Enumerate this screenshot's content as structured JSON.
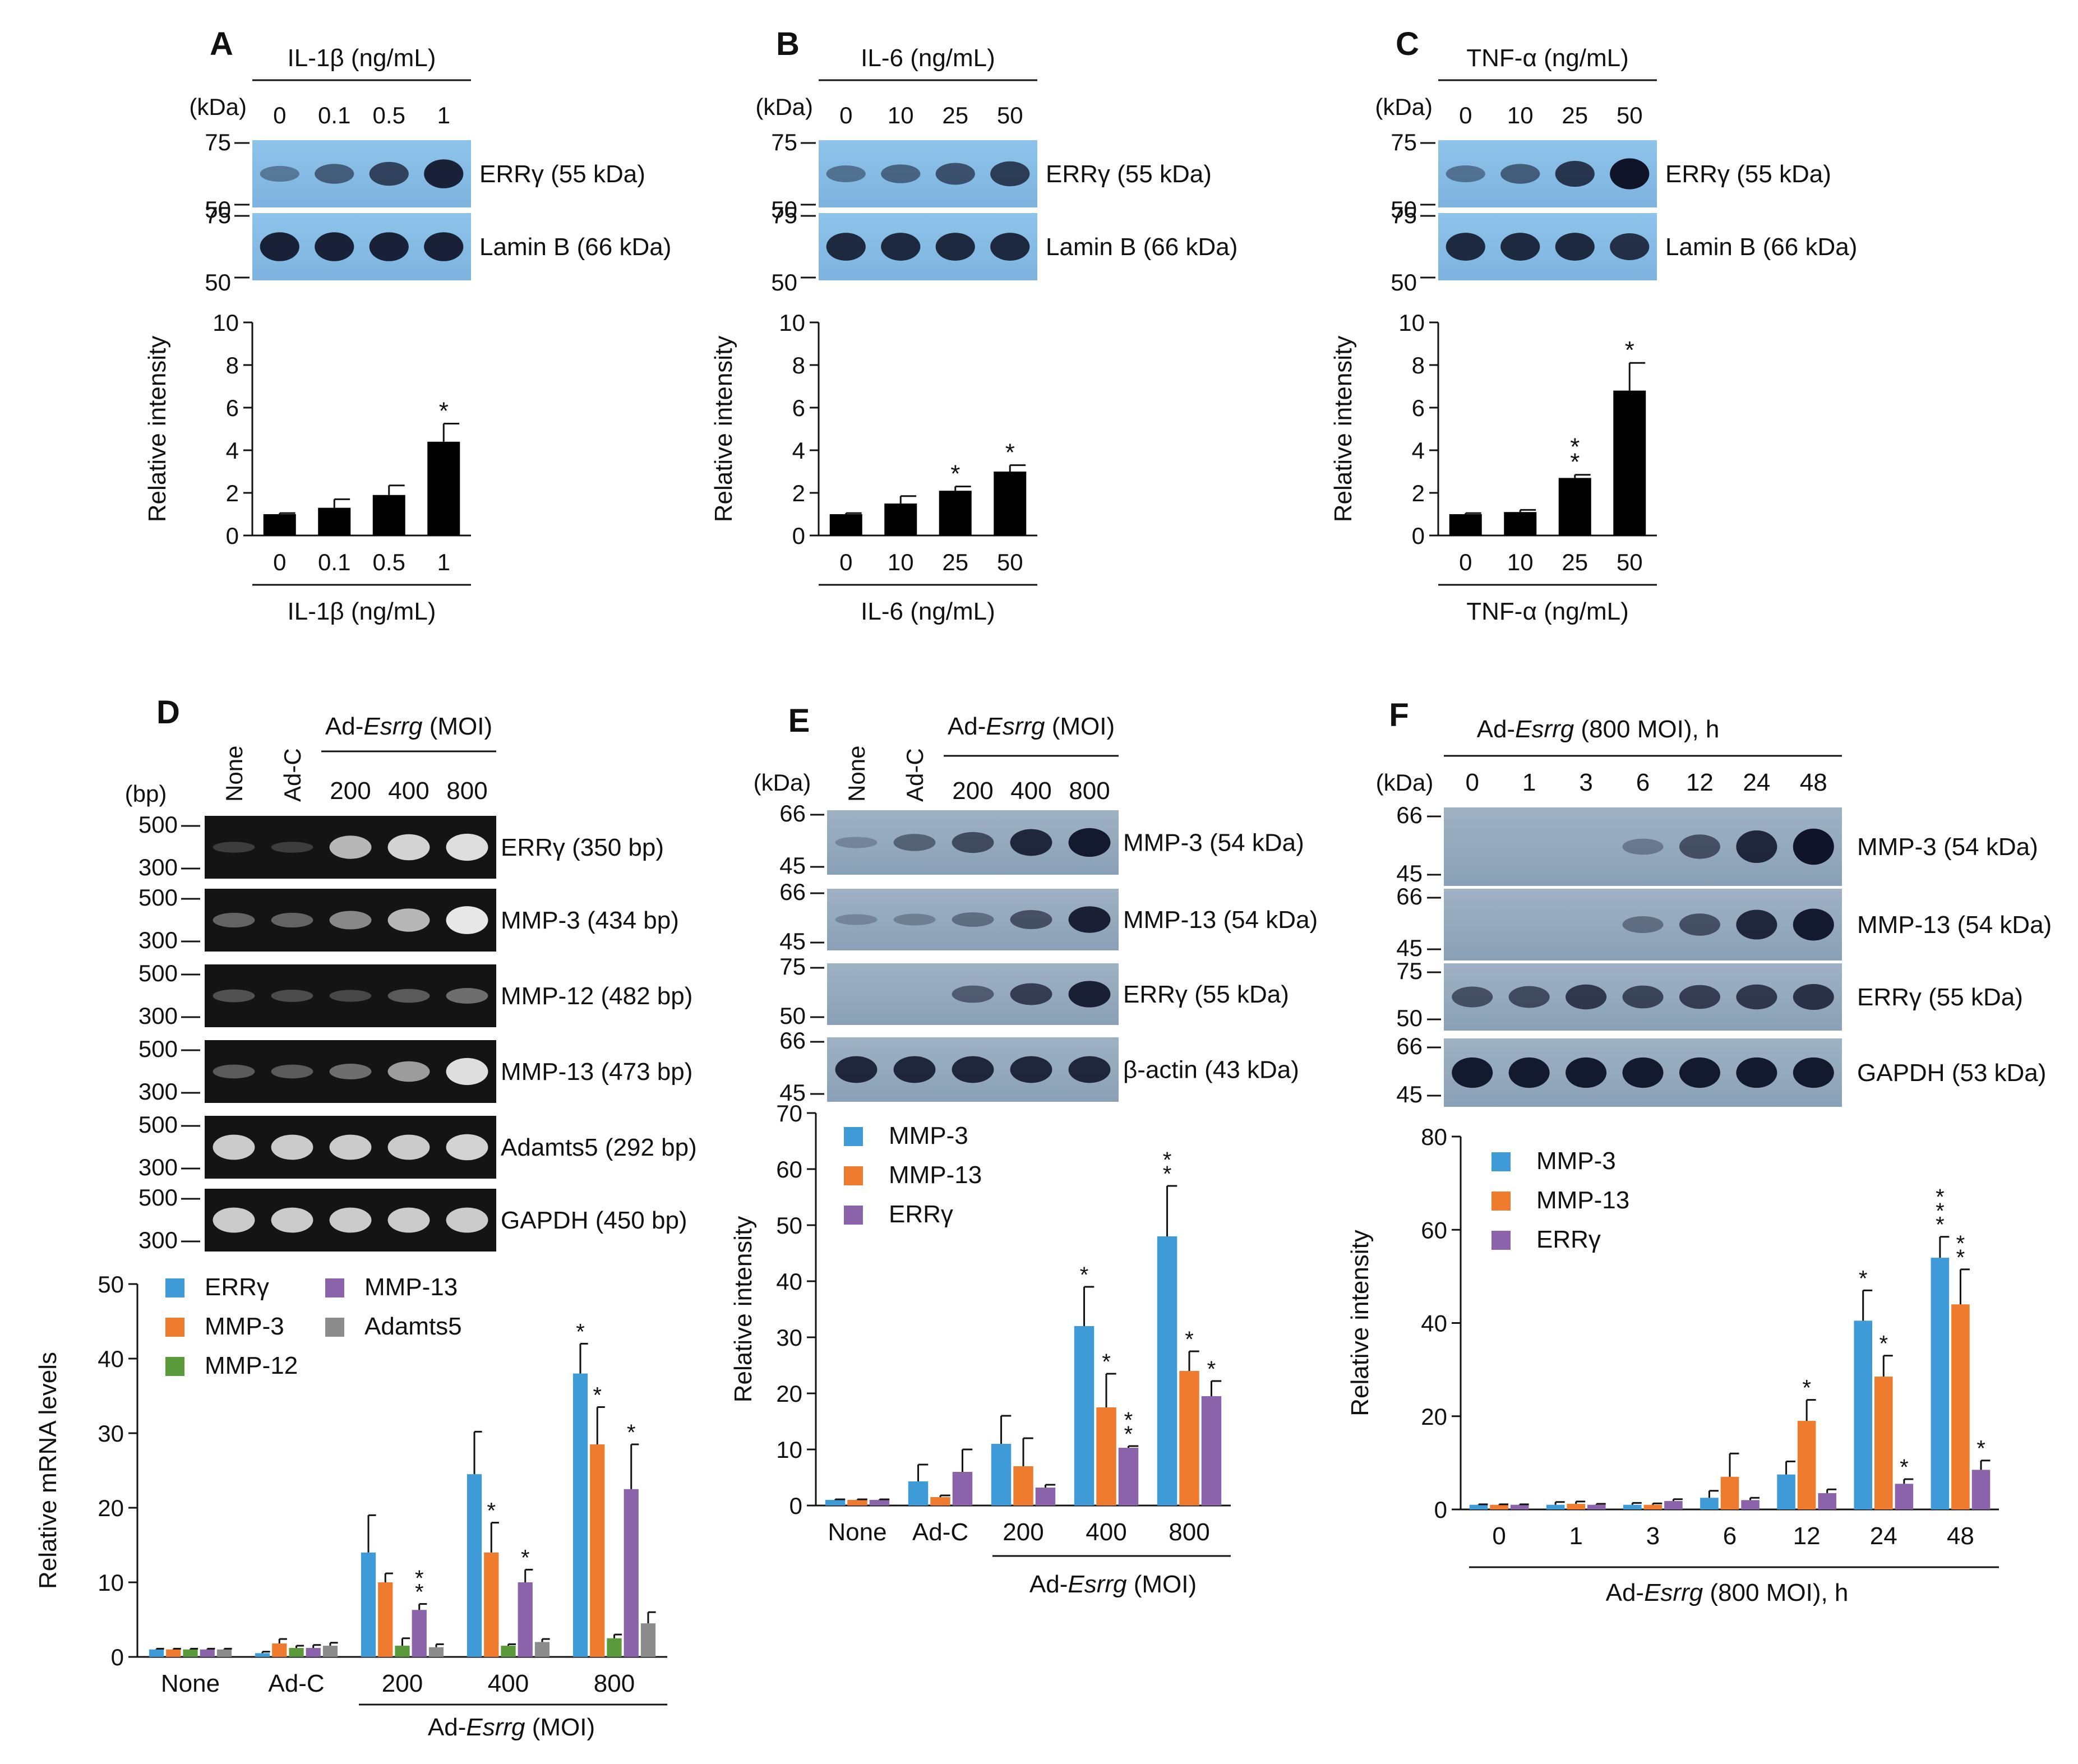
{
  "panels": {
    "A": {
      "letter": "A",
      "treatment_label": "IL-1β (ng/mL)",
      "lanes": [
        "0",
        "0.1",
        "0.5",
        "1"
      ],
      "blot_unit": "(kDa)",
      "markers": [
        [
          "75",
          "50"
        ],
        [
          "75",
          "50"
        ]
      ],
      "bands": [
        "ERRγ (55 kDa)",
        "Lamin B (66 kDa)"
      ],
      "band_intensity": [
        [
          0.25,
          0.45,
          0.65,
          0.9
        ],
        [
          0.9,
          0.9,
          0.9,
          0.9
        ]
      ]
    },
    "B": {
      "letter": "B",
      "treatment_label": "IL-6 (ng/mL)",
      "lanes": [
        "0",
        "10",
        "25",
        "50"
      ],
      "blot_unit": "(kDa)",
      "markers": [
        [
          "75",
          "50"
        ],
        [
          "75",
          "50"
        ]
      ],
      "bands": [
        "ERRγ (55 kDa)",
        "Lamin B (66 kDa)"
      ],
      "band_intensity": [
        [
          0.3,
          0.4,
          0.55,
          0.7
        ],
        [
          0.85,
          0.85,
          0.85,
          0.85
        ]
      ]
    },
    "C": {
      "letter": "C",
      "treatment_label": "TNF-α (ng/mL)",
      "lanes": [
        "0",
        "10",
        "25",
        "50"
      ],
      "blot_unit": "(kDa)",
      "markers": [
        [
          "75",
          "50"
        ],
        [
          "75",
          "50"
        ]
      ],
      "bands": [
        "ERRγ (55 kDa)",
        "Lamin B (66 kDa)"
      ],
      "band_intensity": [
        [
          0.3,
          0.45,
          0.75,
          1.0
        ],
        [
          0.85,
          0.85,
          0.85,
          0.8
        ]
      ]
    },
    "D": {
      "letter": "D",
      "treatment_label": "Ad-Esrrg (MOI)",
      "treatment_prefix": "Ad-",
      "treatment_italic": "Esrrg",
      "treatment_suffix": " (MOI)",
      "lanes": [
        "None",
        "Ad-C",
        "200",
        "400",
        "800"
      ],
      "gel_unit": "(bp)",
      "markers": [
        [
          "500",
          "300"
        ],
        [
          "500",
          "300"
        ],
        [
          "500",
          "300"
        ],
        [
          "500",
          "300"
        ],
        [
          "500",
          "300"
        ],
        [
          "500",
          "300"
        ]
      ],
      "bands": [
        "ERRγ (350 bp)",
        "MMP-3  (434 bp)",
        "MMP-12  (482 bp)",
        "MMP-13  (473 bp)",
        "Adamts5 (292 bp)",
        "GAPDH (450 bp)"
      ],
      "band_intensity": [
        [
          0.05,
          0.05,
          0.7,
          0.85,
          0.9
        ],
        [
          0.25,
          0.25,
          0.45,
          0.7,
          0.95
        ],
        [
          0.15,
          0.12,
          0.1,
          0.2,
          0.3
        ],
        [
          0.2,
          0.2,
          0.3,
          0.55,
          0.9
        ],
        [
          0.8,
          0.8,
          0.8,
          0.8,
          0.85
        ],
        [
          0.8,
          0.8,
          0.8,
          0.8,
          0.8
        ]
      ]
    },
    "E": {
      "letter": "E",
      "treatment_label": "Ad-Esrrg (MOI)",
      "treatment_prefix": "Ad-",
      "treatment_italic": "Esrrg",
      "treatment_suffix": " (MOI)",
      "lanes": [
        "None",
        "Ad-C",
        "200",
        "400",
        "800"
      ],
      "blot_unit": "(kDa)",
      "markers": [
        [
          "66",
          "45"
        ],
        [
          "66",
          "45"
        ],
        [
          "75",
          "50"
        ],
        [
          "66",
          "45"
        ]
      ],
      "bands": [
        "MMP-3  (54 kDa)",
        "MMP-13  (54 kDa)",
        "ERRγ (55 kDa)",
        "β-actin (43 kDa)"
      ],
      "band_intensity": [
        [
          0.05,
          0.35,
          0.55,
          0.85,
          0.95
        ],
        [
          0.05,
          0.1,
          0.25,
          0.5,
          0.9
        ],
        [
          0.0,
          0.0,
          0.4,
          0.65,
          0.9
        ],
        [
          0.85,
          0.85,
          0.85,
          0.85,
          0.85
        ]
      ]
    },
    "F": {
      "letter": "F",
      "treatment_label": "Ad-Esrrg (800 MOI), h",
      "treatment_prefix": "Ad-",
      "treatment_italic": "Esrrg",
      "treatment_suffix": " (800 MOI), h",
      "lanes": [
        "0",
        "1",
        "3",
        "6",
        "12",
        "24",
        "48"
      ],
      "blot_unit": "(kDa)",
      "markers": [
        [
          "66",
          "45"
        ],
        [
          "66",
          "45"
        ],
        [
          "75",
          "50"
        ],
        [
          "66",
          "45"
        ]
      ],
      "bands": [
        "MMP-3  (54 kDa)",
        "MMP-13  (54 kDa)",
        "ERRγ (55 kDa)",
        "GAPDH (53 kDa)"
      ],
      "band_intensity": [
        [
          0.0,
          0.0,
          0.0,
          0.15,
          0.5,
          0.85,
          1.0
        ],
        [
          0.0,
          0.0,
          0.0,
          0.25,
          0.5,
          0.85,
          0.95
        ],
        [
          0.5,
          0.55,
          0.7,
          0.6,
          0.65,
          0.7,
          0.75
        ],
        [
          0.95,
          0.95,
          0.95,
          0.95,
          0.95,
          0.95,
          0.95
        ]
      ]
    }
  },
  "chart_data": [
    {
      "id": "A",
      "type": "bar",
      "categories": [
        "0",
        "0.1",
        "0.5",
        "1"
      ],
      "series": [
        {
          "name": "ERRγ",
          "values": [
            1.0,
            1.3,
            1.9,
            4.4
          ],
          "errors": [
            0.05,
            0.4,
            0.45,
            0.85
          ],
          "sig": [
            "",
            "",
            "",
            "*"
          ],
          "color": "#000000"
        }
      ],
      "ylabel": "Relative intensity",
      "xlabel": "IL-1β (ng/mL)",
      "ylim": [
        0,
        10
      ],
      "yticks": [
        "0",
        "2",
        "4",
        "6",
        "8",
        "10"
      ],
      "legend": []
    },
    {
      "id": "B",
      "type": "bar",
      "categories": [
        "0",
        "10",
        "25",
        "50"
      ],
      "series": [
        {
          "name": "ERRγ",
          "values": [
            1.0,
            1.5,
            2.1,
            3.0
          ],
          "errors": [
            0.05,
            0.35,
            0.2,
            0.3
          ],
          "sig": [
            "",
            "",
            "*",
            "*"
          ],
          "color": "#000000"
        }
      ],
      "ylabel": "Relative intensity",
      "xlabel": "IL-6 (ng/mL)",
      "ylim": [
        0,
        10
      ],
      "yticks": [
        "0",
        "2",
        "4",
        "6",
        "8",
        "10"
      ],
      "legend": []
    },
    {
      "id": "C",
      "type": "bar",
      "categories": [
        "0",
        "10",
        "25",
        "50"
      ],
      "series": [
        {
          "name": "ERRγ",
          "values": [
            1.0,
            1.1,
            2.7,
            6.8
          ],
          "errors": [
            0.05,
            0.1,
            0.15,
            1.3
          ],
          "sig": [
            "",
            "",
            "**",
            "*"
          ],
          "color": "#000000"
        }
      ],
      "ylabel": "Relative intensity",
      "xlabel": "TNF-α (ng/mL)",
      "ylim": [
        0,
        10
      ],
      "yticks": [
        "0",
        "2",
        "4",
        "6",
        "8",
        "10"
      ],
      "legend": []
    },
    {
      "id": "D",
      "type": "bar",
      "categories": [
        "None",
        "Ad-C",
        "200",
        "400",
        "800"
      ],
      "series": [
        {
          "name": "ERRγ",
          "values": [
            1.0,
            0.5,
            14.0,
            24.5,
            38.0
          ],
          "errors": [
            0.1,
            0.2,
            5.0,
            5.7,
            4.0
          ],
          "sig": [
            "",
            "",
            "",
            "",
            "*"
          ],
          "color": "#3f9ad8"
        },
        {
          "name": "MMP-3",
          "values": [
            1.0,
            1.8,
            10.0,
            14.0,
            28.5
          ],
          "errors": [
            0.1,
            0.6,
            1.2,
            4.0,
            5.0
          ],
          "sig": [
            "",
            "",
            "",
            "*",
            "*"
          ],
          "color": "#ef7c2e"
        },
        {
          "name": "MMP-12",
          "values": [
            1.0,
            1.2,
            1.5,
            1.5,
            2.5
          ],
          "errors": [
            0.1,
            0.3,
            1.0,
            0.2,
            0.5
          ],
          "sig": [
            "",
            "",
            "",
            "",
            ""
          ],
          "color": "#5a9a3a"
        },
        {
          "name": "MMP-13",
          "values": [
            1.0,
            1.2,
            6.3,
            10.0,
            22.5
          ],
          "errors": [
            0.1,
            0.4,
            0.8,
            1.7,
            6.0
          ],
          "sig": [
            "",
            "",
            "**",
            "*",
            "*"
          ],
          "color": "#8a63ab"
        },
        {
          "name": "Adamts5",
          "values": [
            1.0,
            1.5,
            1.3,
            2.0,
            4.5
          ],
          "errors": [
            0.1,
            0.4,
            0.4,
            0.4,
            1.5
          ],
          "sig": [
            "",
            "",
            "",
            "",
            ""
          ],
          "color": "#8c8c8c"
        }
      ],
      "ylabel": "Relative mRNA levels",
      "xlabel": "Ad-Esrrg (MOI)",
      "ylim": [
        0,
        50
      ],
      "yticks": [
        "0",
        "10",
        "20",
        "30",
        "40",
        "50"
      ],
      "legend": [
        "ERRγ",
        "MMP-3",
        "MMP-12",
        "MMP-13",
        "Adamts5"
      ]
    },
    {
      "id": "E",
      "type": "bar",
      "categories": [
        "None",
        "Ad-C",
        "200",
        "400",
        "800"
      ],
      "series": [
        {
          "name": "MMP-3",
          "values": [
            1.0,
            4.3,
            11.0,
            32.0,
            48.0
          ],
          "errors": [
            0.1,
            3.0,
            5.0,
            7.0,
            9.0
          ],
          "sig": [
            "",
            "",
            "",
            "*",
            "**"
          ],
          "color": "#3f9ad8"
        },
        {
          "name": "MMP-13",
          "values": [
            1.0,
            1.5,
            7.0,
            17.5,
            24.0
          ],
          "errors": [
            0.1,
            0.3,
            5.0,
            6.0,
            3.5
          ],
          "sig": [
            "",
            "",
            "",
            "*",
            "*"
          ],
          "color": "#ef7c2e"
        },
        {
          "name": "ERRγ",
          "values": [
            1.0,
            6.0,
            3.2,
            10.3,
            19.5
          ],
          "errors": [
            0.1,
            4.0,
            0.5,
            0.3,
            2.7
          ],
          "sig": [
            "",
            "",
            "",
            "**",
            "*"
          ],
          "color": "#8a63ab"
        }
      ],
      "ylabel": "Relative intensity",
      "xlabel": "Ad-Esrrg (MOI)",
      "ylim": [
        0,
        70
      ],
      "yticks": [
        "0",
        "10",
        "20",
        "30",
        "40",
        "50",
        "60",
        "70"
      ],
      "legend": [
        "MMP-3",
        "MMP-13",
        "ERRγ"
      ]
    },
    {
      "id": "F",
      "type": "bar",
      "categories": [
        "0",
        "1",
        "3",
        "6",
        "12",
        "24",
        "48"
      ],
      "series": [
        {
          "name": "MMP-3",
          "values": [
            1.0,
            1.0,
            1.0,
            2.5,
            7.5,
            40.5,
            54.0
          ],
          "errors": [
            0.1,
            0.6,
            0.4,
            1.5,
            2.8,
            6.5,
            4.5
          ],
          "sig": [
            "",
            "",
            "",
            "",
            "",
            "*",
            "***"
          ],
          "color": "#3f9ad8"
        },
        {
          "name": "MMP-13",
          "values": [
            1.0,
            1.2,
            1.0,
            7.0,
            19.0,
            28.5,
            44.0
          ],
          "errors": [
            0.1,
            0.5,
            0.3,
            5.0,
            4.5,
            4.5,
            7.5
          ],
          "sig": [
            "",
            "",
            "",
            "",
            "*",
            "*",
            "**"
          ],
          "color": "#ef7c2e"
        },
        {
          "name": "ERRγ",
          "values": [
            1.0,
            1.0,
            1.8,
            2.0,
            3.5,
            5.5,
            8.5
          ],
          "errors": [
            0.1,
            0.2,
            0.4,
            0.5,
            0.8,
            1.0,
            2.0
          ],
          "sig": [
            "",
            "",
            "",
            "",
            "",
            "*",
            "*"
          ],
          "color": "#8a63ab"
        }
      ],
      "ylabel": "Relative intensity",
      "xlabel": "Ad-Esrrg (800 MOI), h",
      "ylim": [
        0,
        80
      ],
      "yticks": [
        "0",
        "20",
        "40",
        "60",
        "80"
      ],
      "legend": [
        "MMP-3",
        "MMP-13",
        "ERRγ"
      ]
    }
  ]
}
